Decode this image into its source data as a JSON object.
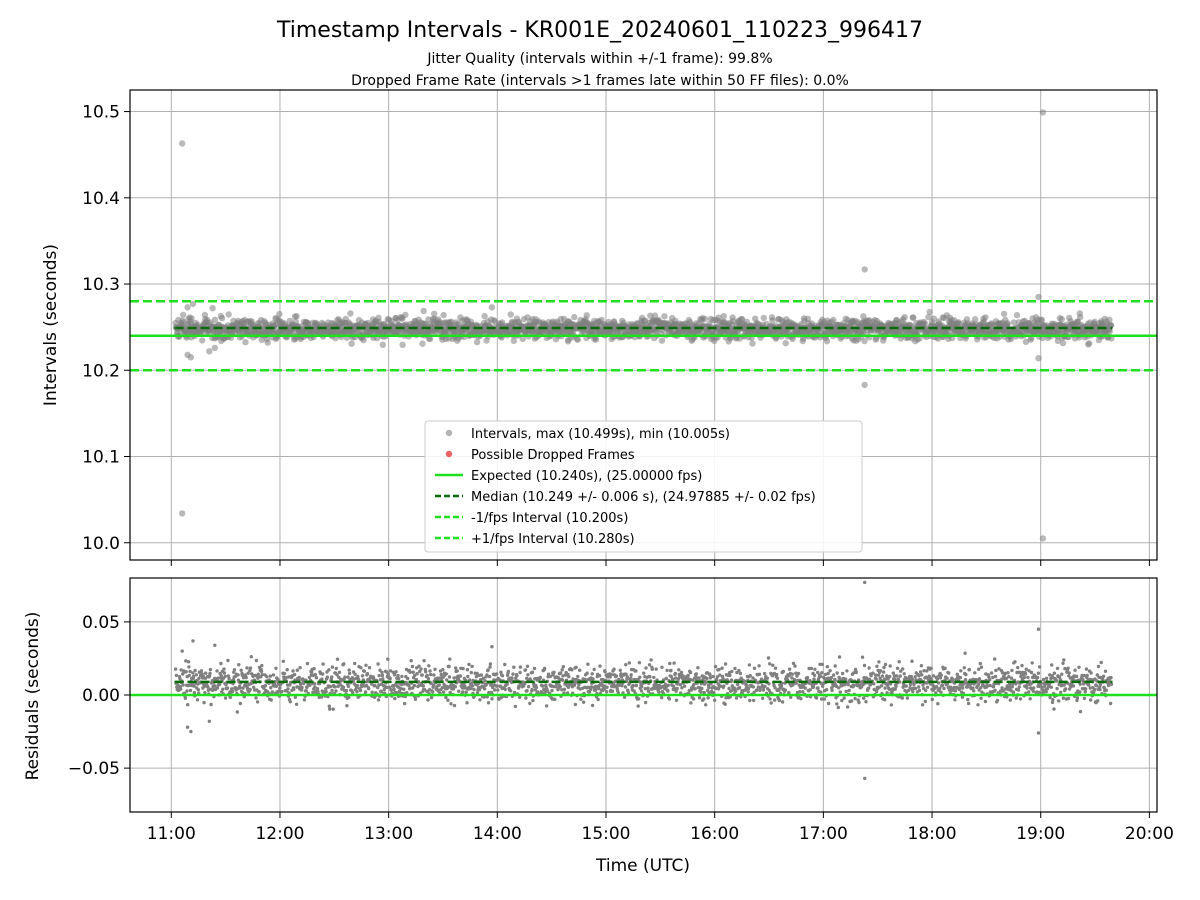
{
  "chart_data": {
    "type": "scatter",
    "title": "Timestamp Intervals - KR001E_20240601_110223_996417",
    "subtitle_lines": [
      "Jitter Quality (intervals within +/-1 frame): 99.8%",
      "Dropped Frame Rate (intervals >1 frames late within 50 FF files): 0.0%"
    ],
    "xlabel": "Time (UTC)",
    "x_ticks": [
      "11:00",
      "12:00",
      "13:00",
      "14:00",
      "15:00",
      "16:00",
      "17:00",
      "18:00",
      "19:00",
      "20:00"
    ],
    "x_range_hours": [
      10.62,
      20.07
    ],
    "data_x_range_hours": [
      11.04,
      19.65
    ],
    "grid": true,
    "colors": {
      "points": "#808080",
      "dropped": "#e8474a",
      "expected": "#1fe01f",
      "median": "#0a6b0a",
      "interval_bounds": "#1fe01f"
    },
    "top_panel": {
      "ylabel": "Intervals (seconds)",
      "ylim": [
        9.98,
        10.525
      ],
      "y_ticks": [
        "10.0",
        "10.1",
        "10.2",
        "10.3",
        "10.4",
        "10.5"
      ],
      "expected": 10.24,
      "median": 10.249,
      "minus_interval": 10.2,
      "plus_interval": 10.28,
      "scatter_center": 10.248,
      "scatter_spread": 0.006,
      "outliers": [
        {
          "x": 11.1,
          "y": 10.463
        },
        {
          "x": 11.1,
          "y": 10.034
        },
        {
          "x": 11.15,
          "y": 10.218
        },
        {
          "x": 11.18,
          "y": 10.215
        },
        {
          "x": 11.15,
          "y": 10.273
        },
        {
          "x": 11.2,
          "y": 10.277
        },
        {
          "x": 11.35,
          "y": 10.222
        },
        {
          "x": 11.4,
          "y": 10.226
        },
        {
          "x": 11.38,
          "y": 10.272
        },
        {
          "x": 13.95,
          "y": 10.273
        },
        {
          "x": 17.38,
          "y": 10.317
        },
        {
          "x": 17.38,
          "y": 10.183
        },
        {
          "x": 18.98,
          "y": 10.285
        },
        {
          "x": 18.98,
          "y": 10.214
        },
        {
          "x": 19.02,
          "y": 10.499
        },
        {
          "x": 19.02,
          "y": 10.005
        }
      ]
    },
    "bottom_panel": {
      "ylabel": "Residuals (seconds)",
      "ylim": [
        -0.08,
        0.08
      ],
      "y_ticks": [
        "0.05",
        "0.00",
        "−0.05"
      ],
      "y_tick_values": [
        0.05,
        0.0,
        -0.05
      ],
      "expected": 0.0,
      "median": 0.009,
      "scatter_center": 0.008,
      "scatter_spread": 0.006,
      "outliers": [
        {
          "x": 11.1,
          "y": 0.03
        },
        {
          "x": 11.15,
          "y": -0.022
        },
        {
          "x": 11.18,
          "y": -0.025
        },
        {
          "x": 11.2,
          "y": 0.037
        },
        {
          "x": 11.35,
          "y": -0.018
        },
        {
          "x": 11.4,
          "y": 0.034
        },
        {
          "x": 13.95,
          "y": 0.033
        },
        {
          "x": 17.38,
          "y": 0.077
        },
        {
          "x": 17.38,
          "y": -0.057
        },
        {
          "x": 18.98,
          "y": 0.045
        },
        {
          "x": 18.98,
          "y": -0.026
        }
      ]
    },
    "legend": {
      "position": "lower-center",
      "entries": [
        {
          "label": "Intervals, max (10.499s), min (10.005s)",
          "kind": "points"
        },
        {
          "label": "Possible Dropped Frames",
          "kind": "dropped"
        },
        {
          "label": "Expected (10.240s), (25.00000 fps)",
          "kind": "expected"
        },
        {
          "label": "Median (10.249 +/- 0.006 s), (24.97885 +/- 0.02 fps)",
          "kind": "median"
        },
        {
          "label": "-1/fps Interval (10.200s)",
          "kind": "minus"
        },
        {
          "label": "+1/fps Interval (10.280s)",
          "kind": "plus"
        }
      ]
    }
  }
}
